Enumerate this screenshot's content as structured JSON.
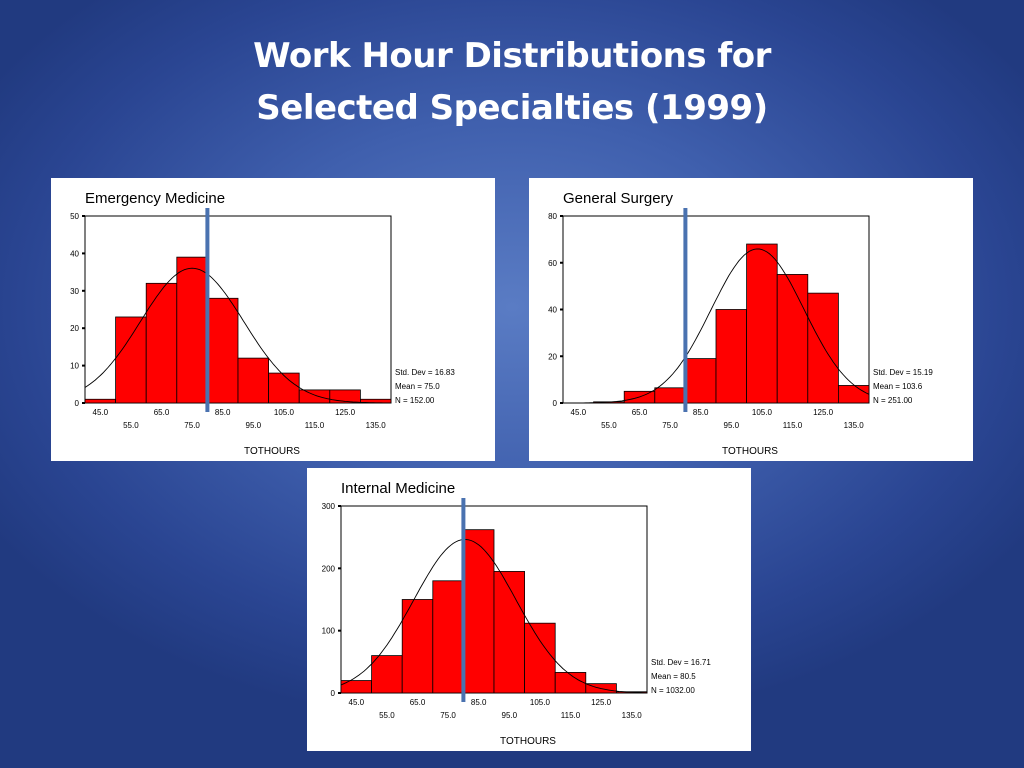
{
  "title": {
    "line1": "Work Hour Distributions for",
    "line2": "Selected Specialties (1999)"
  },
  "colors": {
    "bar_fill": "#ff0000",
    "bar_stroke": "#000000",
    "marker": "#4a72b0",
    "curve": "#000000"
  },
  "chart_data": [
    {
      "id": "em",
      "type": "bar",
      "title": "Emergency Medicine",
      "xlabel": "TOTHOURS",
      "ylabel": "",
      "categories": [
        45,
        55,
        65,
        75,
        85,
        95,
        105,
        115,
        125,
        135
      ],
      "values": [
        1,
        23,
        32,
        39,
        28,
        12,
        8,
        3.5,
        3.5,
        1
      ],
      "x_ticks_row1": [
        "45.0",
        "65.0",
        "85.0",
        "105.0",
        "125.0"
      ],
      "x_ticks_row2": [
        "55.0",
        "75.0",
        "95.0",
        "115.0",
        "135.0"
      ],
      "y_ticks": [
        "0",
        "10",
        "20",
        "30",
        "40",
        "50"
      ],
      "ylim": [
        0,
        50
      ],
      "marker_x": 80,
      "std_dev": 16.83,
      "mean": 75.0,
      "n": 152,
      "stats_text": [
        "Std. Dev = 16.83",
        "Mean = 75.0",
        "N = 152.00"
      ]
    },
    {
      "id": "gs",
      "type": "bar",
      "title": "General Surgery",
      "xlabel": "TOTHOURS",
      "ylabel": "",
      "categories": [
        45,
        55,
        65,
        75,
        85,
        95,
        105,
        115,
        125,
        135
      ],
      "values": [
        0,
        0.5,
        5,
        6.5,
        19,
        40,
        68,
        55,
        47,
        7.5
      ],
      "x_ticks_row1": [
        "45.0",
        "65.0",
        "85.0",
        "105.0",
        "125.0"
      ],
      "x_ticks_row2": [
        "55.0",
        "75.0",
        "95.0",
        "115.0",
        "135.0"
      ],
      "y_ticks": [
        "0",
        "20",
        "40",
        "60",
        "80"
      ],
      "ylim": [
        0,
        80
      ],
      "marker_x": 80,
      "std_dev": 15.19,
      "mean": 103.6,
      "n": 251,
      "stats_text": [
        "Std. Dev = 15.19",
        "Mean = 103.6",
        "N = 251.00"
      ]
    },
    {
      "id": "im",
      "type": "bar",
      "title": "Internal Medicine",
      "xlabel": "TOTHOURS",
      "ylabel": "",
      "categories": [
        45,
        55,
        65,
        75,
        85,
        95,
        105,
        115,
        125,
        135
      ],
      "values": [
        20,
        60,
        150,
        180,
        262,
        195,
        112,
        33,
        15,
        2
      ],
      "x_ticks_row1": [
        "45.0",
        "65.0",
        "85.0",
        "105.0",
        "125.0"
      ],
      "x_ticks_row2": [
        "55.0",
        "75.0",
        "95.0",
        "115.0",
        "135.0"
      ],
      "y_ticks": [
        "0",
        "100",
        "200",
        "300"
      ],
      "ylim": [
        0,
        300
      ],
      "marker_x": 80,
      "std_dev": 16.71,
      "mean": 80.5,
      "n": 1032,
      "stats_text": [
        "Std. Dev = 16.71",
        "Mean = 80.5",
        "N = 1032.00"
      ]
    }
  ]
}
